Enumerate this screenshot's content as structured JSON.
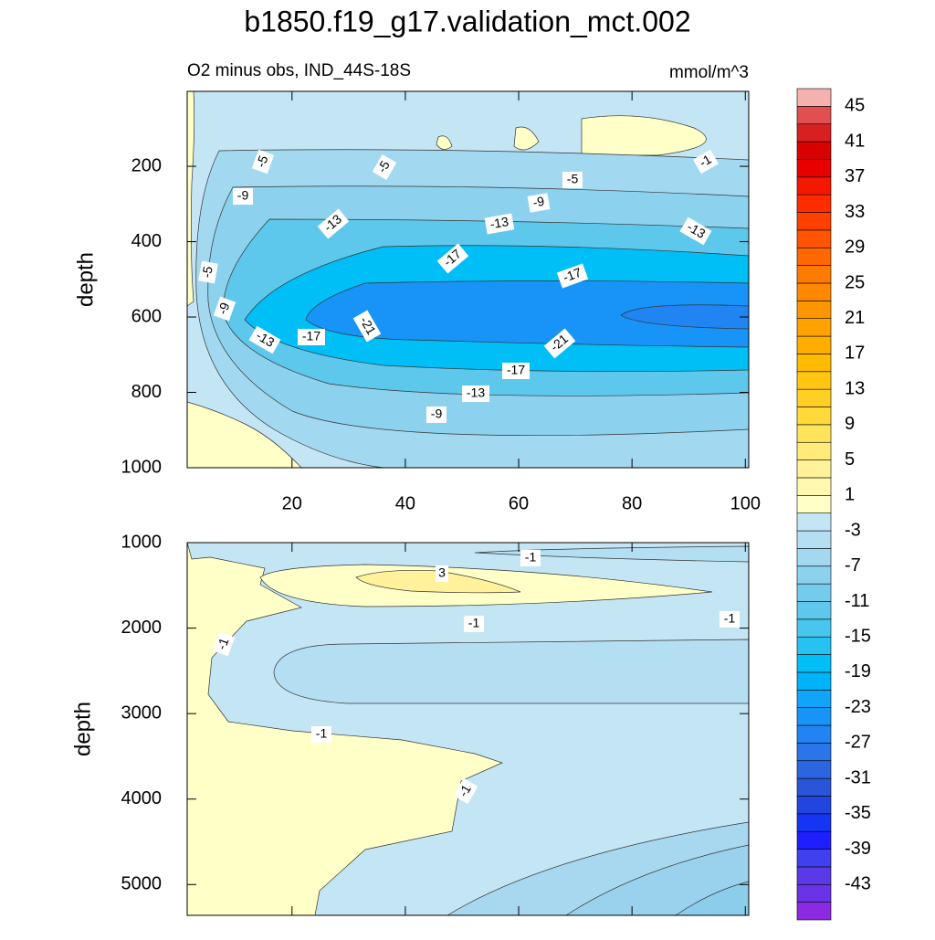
{
  "title": "b1850.f19_g17.validation_mct.002",
  "chart_data": [
    {
      "type": "contour",
      "subtitle": "O2 minus obs, IND_44S-18S",
      "units": "mmol/m^3",
      "ylabel": "depth",
      "xlim": [
        1.5,
        100.6
      ],
      "xticks": [
        20,
        40,
        60,
        80,
        100
      ],
      "ylim": [
        1000,
        1
      ],
      "yticks": [
        200,
        400,
        600,
        800,
        1000
      ],
      "contour_labels": [
        -5,
        -5,
        -5,
        -1,
        -9,
        -9,
        -13,
        -13,
        -13,
        -17,
        -17,
        -5,
        -9,
        -21,
        -13,
        -17,
        -21,
        -17,
        -13,
        -9
      ]
    },
    {
      "type": "contour",
      "ylabel": "depth",
      "xlim": [
        1.5,
        100.6
      ],
      "xticks": [
        20,
        40,
        60,
        80,
        100
      ],
      "ylim": [
        5360,
        1000
      ],
      "yticks": [
        1000,
        2000,
        3000,
        4000,
        5000
      ],
      "contour_labels": [
        -1,
        3,
        -1,
        -1,
        -1,
        -1,
        -1
      ]
    }
  ],
  "colorbar": {
    "clim": [
      -47,
      47
    ],
    "ticks": [
      45,
      41,
      37,
      33,
      29,
      25,
      21,
      17,
      13,
      9,
      5,
      1,
      -3,
      -7,
      -11,
      -15,
      -19,
      -23,
      -27,
      -31,
      -35,
      -39,
      -43
    ],
    "colors": [
      "#8a2be2",
      "#6a33e6",
      "#5a3ae8",
      "#4040ee",
      "#1e1eff",
      "#1535f2",
      "#2245e0",
      "#2a55d8",
      "#2c65e0",
      "#2a75ea",
      "#2085f2",
      "#1894f8",
      "#10a4fa",
      "#00b2f8",
      "#00bef6",
      "#28c2f2",
      "#48c6ee",
      "#5ec8ec",
      "#74ccec",
      "#8cd2ee",
      "#a2d8f0",
      "#b4def2",
      "#c4e6f4",
      "#ffffc8",
      "#fff8b0",
      "#fff29a",
      "#ffea7a",
      "#ffe35a",
      "#ffda3a",
      "#ffd024",
      "#ffc612",
      "#ffbb00",
      "#ffae00",
      "#ffa200",
      "#ff9600",
      "#ff8800",
      "#ff7a00",
      "#ff6800",
      "#ff5400",
      "#ff4000",
      "#ff2c00",
      "#f51800",
      "#e80000",
      "#d80000",
      "#d82020",
      "#e05050",
      "#f5b0b0"
    ]
  }
}
